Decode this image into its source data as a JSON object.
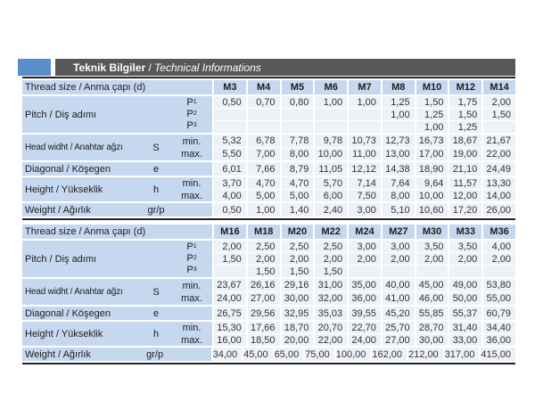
{
  "header": {
    "title_main": "Teknik Bilgiler",
    "title_separator": " / ",
    "title_sub": "Technical Informations"
  },
  "row_labels": {
    "thread": "Thread size / Anma çapı (d)",
    "pitch": "Pitch / Diş adımı",
    "p_base": "P",
    "p_subs": [
      "1",
      "2",
      "3"
    ],
    "head": "Head widht / Anahtar ağzı",
    "head_symbol": "S",
    "min": "min.",
    "max": "max.",
    "diagonal": "Diagonal / Köşegen",
    "diagonal_symbol": "e",
    "height": "Height / Yükseklik",
    "height_symbol": "h",
    "weight": "Weight / Ağırlık",
    "weight_symbol": "gr/p"
  },
  "tables": [
    {
      "sizes": [
        "M3",
        "M4",
        "M5",
        "M6",
        "M7",
        "M8",
        "M10",
        "M12",
        "M14"
      ],
      "p1": [
        "0,50",
        "0,70",
        "0,80",
        "1,00",
        "1,00",
        "1,25",
        "1,50",
        "1,75",
        "2,00"
      ],
      "p2": [
        "",
        "",
        "",
        "",
        "",
        "1,00",
        "1,25",
        "1,50",
        "1,50"
      ],
      "p3": [
        "",
        "",
        "",
        "",
        "",
        "",
        "1,00",
        "1,25",
        ""
      ],
      "s_min": [
        "5,32",
        "6,78",
        "7,78",
        "9,78",
        "10,73",
        "12,73",
        "16,73",
        "18,67",
        "21,67"
      ],
      "s_max": [
        "5,50",
        "7,00",
        "8,00",
        "10,00",
        "11,00",
        "13,00",
        "17,00",
        "19,00",
        "22,00"
      ],
      "e": [
        "6,01",
        "7,66",
        "8,79",
        "11,05",
        "12,12",
        "14,38",
        "18,90",
        "21,10",
        "24,49"
      ],
      "h_min": [
        "3,70",
        "4,70",
        "4,70",
        "5,70",
        "7,14",
        "7,64",
        "9,64",
        "11,57",
        "13,30"
      ],
      "h_max": [
        "4,00",
        "5,00",
        "5,00",
        "6,00",
        "7,50",
        "8,00",
        "10,00",
        "12,00",
        "14,00"
      ],
      "weight": [
        "0,50",
        "1,00",
        "1,40",
        "2,40",
        "3,00",
        "5,10",
        "10,60",
        "17,20",
        "26,00"
      ]
    },
    {
      "sizes": [
        "M16",
        "M18",
        "M20",
        "M22",
        "M24",
        "M27",
        "M30",
        "M33",
        "M36"
      ],
      "p1": [
        "2,00",
        "2,50",
        "2,50",
        "2,50",
        "3,00",
        "3,00",
        "3,50",
        "3,50",
        "4,00"
      ],
      "p2": [
        "1,50",
        "2,00",
        "2,00",
        "2,00",
        "2,00",
        "2,00",
        "2,00",
        "2,00",
        "2,00"
      ],
      "p3": [
        "",
        "1,50",
        "1,50",
        "1,50",
        "",
        "",
        "",
        "",
        ""
      ],
      "s_min": [
        "23,67",
        "26,16",
        "29,16",
        "31,00",
        "35,00",
        "40,00",
        "45,00",
        "49,00",
        "53,80"
      ],
      "s_max": [
        "24,00",
        "27,00",
        "30,00",
        "32,00",
        "36,00",
        "41,00",
        "46,00",
        "50,00",
        "55,00"
      ],
      "e": [
        "26,75",
        "29,56",
        "32,95",
        "35,03",
        "39,55",
        "45,20",
        "55,85",
        "55,37",
        "60,79"
      ],
      "h_min": [
        "15,30",
        "17,66",
        "18,70",
        "20,70",
        "22,70",
        "25,70",
        "28,70",
        "31,40",
        "34,40"
      ],
      "h_max": [
        "16,00",
        "18,50",
        "20,00",
        "22,00",
        "24,00",
        "27,00",
        "30,00",
        "33,00",
        "36,00"
      ],
      "weight": [
        "34,00",
        "45,00",
        "65,00",
        "75,00",
        "100,00",
        "162,00",
        "212,00",
        "317,00",
        "415,00"
      ]
    }
  ],
  "colors": {
    "accent_blue": "#5b8fc9",
    "bar_gray": "#58585a",
    "band_blue": "#c5d8ef",
    "cell_bg": "#edf1f8",
    "line_dark": "#222222"
  }
}
